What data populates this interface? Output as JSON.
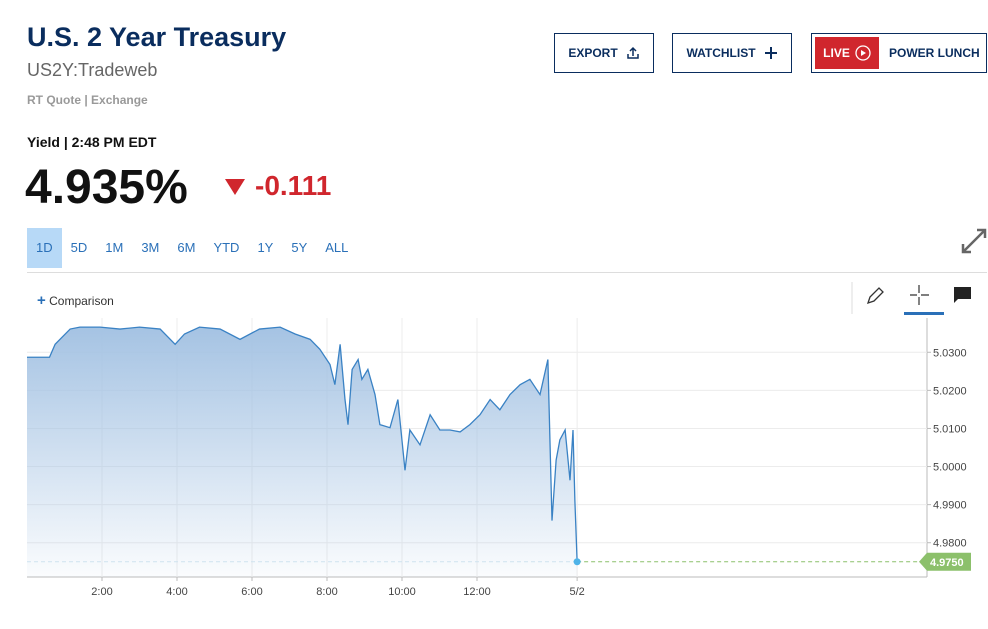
{
  "header": {
    "title": "U.S. 2 Year Treasury",
    "symbol": "US2Y:Tradeweb",
    "quote_type": "RT Quote",
    "source": "Exchange"
  },
  "buttons": {
    "export": "EXPORT",
    "watchlist": "WATCHLIST",
    "live": "LIVE",
    "show": "POWER LUNCH"
  },
  "quote": {
    "label": "Yield",
    "time": "2:48 PM EDT",
    "price": "4.935%",
    "change": "-0.111"
  },
  "tabs": [
    "1D",
    "5D",
    "1M",
    "3M",
    "6M",
    "YTD",
    "1Y",
    "5Y",
    "ALL"
  ],
  "comparison": "Comparison",
  "chart_data": {
    "type": "area",
    "series": [
      {
        "name": "US2Y",
        "color": "#3a82c4",
        "x": [
          0,
          0.6,
          0.75,
          0.88,
          1.15,
          1.41,
          1.95,
          2.48,
          3.0,
          3.55,
          3.95,
          4.2,
          4.6,
          5.15,
          5.68,
          6.2,
          6.75,
          7.15,
          7.55,
          7.81,
          8.08,
          8.21,
          8.35,
          8.48,
          8.56,
          8.67,
          8.83,
          8.93,
          9.09,
          9.28,
          9.41,
          9.68,
          9.89,
          10.08,
          10.21,
          10.48,
          10.75,
          11.01,
          11.28,
          11.55,
          11.81,
          12.08,
          12.35,
          12.61,
          12.88,
          13.15,
          13.41,
          13.68,
          13.89,
          14.0,
          14.11,
          14.21,
          14.35,
          14.48,
          14.56,
          14.61,
          14.67
        ],
        "values": [
          5.0287,
          5.0287,
          5.0321,
          5.0334,
          5.0361,
          5.0366,
          5.0366,
          5.0361,
          5.0366,
          5.0361,
          5.0321,
          5.0348,
          5.0366,
          5.0361,
          5.0334,
          5.0361,
          5.0366,
          5.0348,
          5.0334,
          5.0308,
          5.0268,
          5.0215,
          5.0321,
          5.0176,
          5.011,
          5.0255,
          5.0281,
          5.0229,
          5.0255,
          5.0189,
          5.011,
          5.0102,
          5.0176,
          4.999,
          5.0096,
          5.0057,
          5.0136,
          5.0096,
          5.0096,
          5.0091,
          5.011,
          5.0136,
          5.0176,
          5.0149,
          5.0189,
          5.0215,
          5.0229,
          5.0189,
          5.0281,
          4.9858,
          5.0017,
          5.007,
          5.0096,
          4.9964,
          5.0096,
          4.9911,
          4.975
        ]
      }
    ],
    "xlim": [
      0,
      24
    ],
    "xticks": [
      {
        "value": 2,
        "label": "2:00"
      },
      {
        "value": 4,
        "label": "4:00"
      },
      {
        "value": 6,
        "label": "6:00"
      },
      {
        "value": 8,
        "label": "8:00"
      },
      {
        "value": 10,
        "label": "10:00"
      },
      {
        "value": 12,
        "label": "12:00"
      },
      {
        "value": 14.67,
        "label": "5/2"
      }
    ],
    "ylim": [
      4.971,
      5.039
    ],
    "yticks": [
      {
        "value": 4.98,
        "label": "4.9800"
      },
      {
        "value": 4.99,
        "label": "4.9900"
      },
      {
        "value": 5.0,
        "label": "5.0000"
      },
      {
        "value": 5.01,
        "label": "5.0100"
      },
      {
        "value": 5.02,
        "label": "5.0200"
      },
      {
        "value": 5.03,
        "label": "5.0300"
      }
    ],
    "reference_line": {
      "value": 4.975,
      "label": "4.9750",
      "color": "#8cc06b"
    },
    "grid": true
  }
}
